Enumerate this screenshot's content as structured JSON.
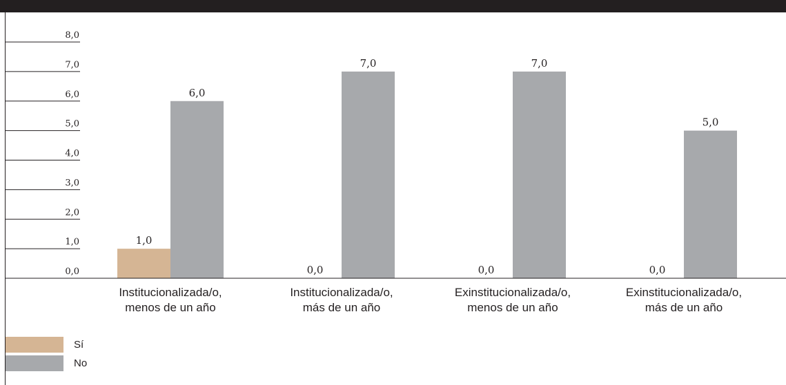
{
  "colors": {
    "si": "#d5b594",
    "no": "#a7a9ac",
    "text": "#231f20",
    "bar": "#231f20"
  },
  "chart_data": {
    "type": "bar",
    "categories": [
      [
        "Institucionalizada/o,",
        "menos de un año"
      ],
      [
        "Institucionalizada/o,",
        "más de un año"
      ],
      [
        "Exinstitucionalizada/o,",
        "menos de un año"
      ],
      [
        "Exinstitucionalizada/o,",
        "más de un año"
      ]
    ],
    "series": [
      {
        "name": "Sí",
        "color": "#d5b594",
        "values": [
          1.0,
          0.0,
          0.0,
          0.0
        ],
        "labels": [
          "1,0",
          "0,0",
          "0,0",
          "0,0"
        ]
      },
      {
        "name": "No",
        "color": "#a7a9ac",
        "values": [
          6.0,
          7.0,
          7.0,
          5.0
        ],
        "labels": [
          "6,0",
          "7,0",
          "7,0",
          "5,0"
        ]
      }
    ],
    "ylim": [
      0,
      8
    ],
    "y_ticks": [
      0,
      1,
      2,
      3,
      4,
      5,
      6,
      7,
      8
    ],
    "y_tick_labels": [
      "0,0",
      "1,0",
      "2,0",
      "3,0",
      "4,0",
      "5,0",
      "6,0",
      "7,0",
      "8,0"
    ],
    "legend_position": "bottom-left",
    "grid": false
  },
  "legend": [
    {
      "label": "Sí",
      "color": "#d5b594"
    },
    {
      "label": "No",
      "color": "#a7a9ac"
    }
  ]
}
